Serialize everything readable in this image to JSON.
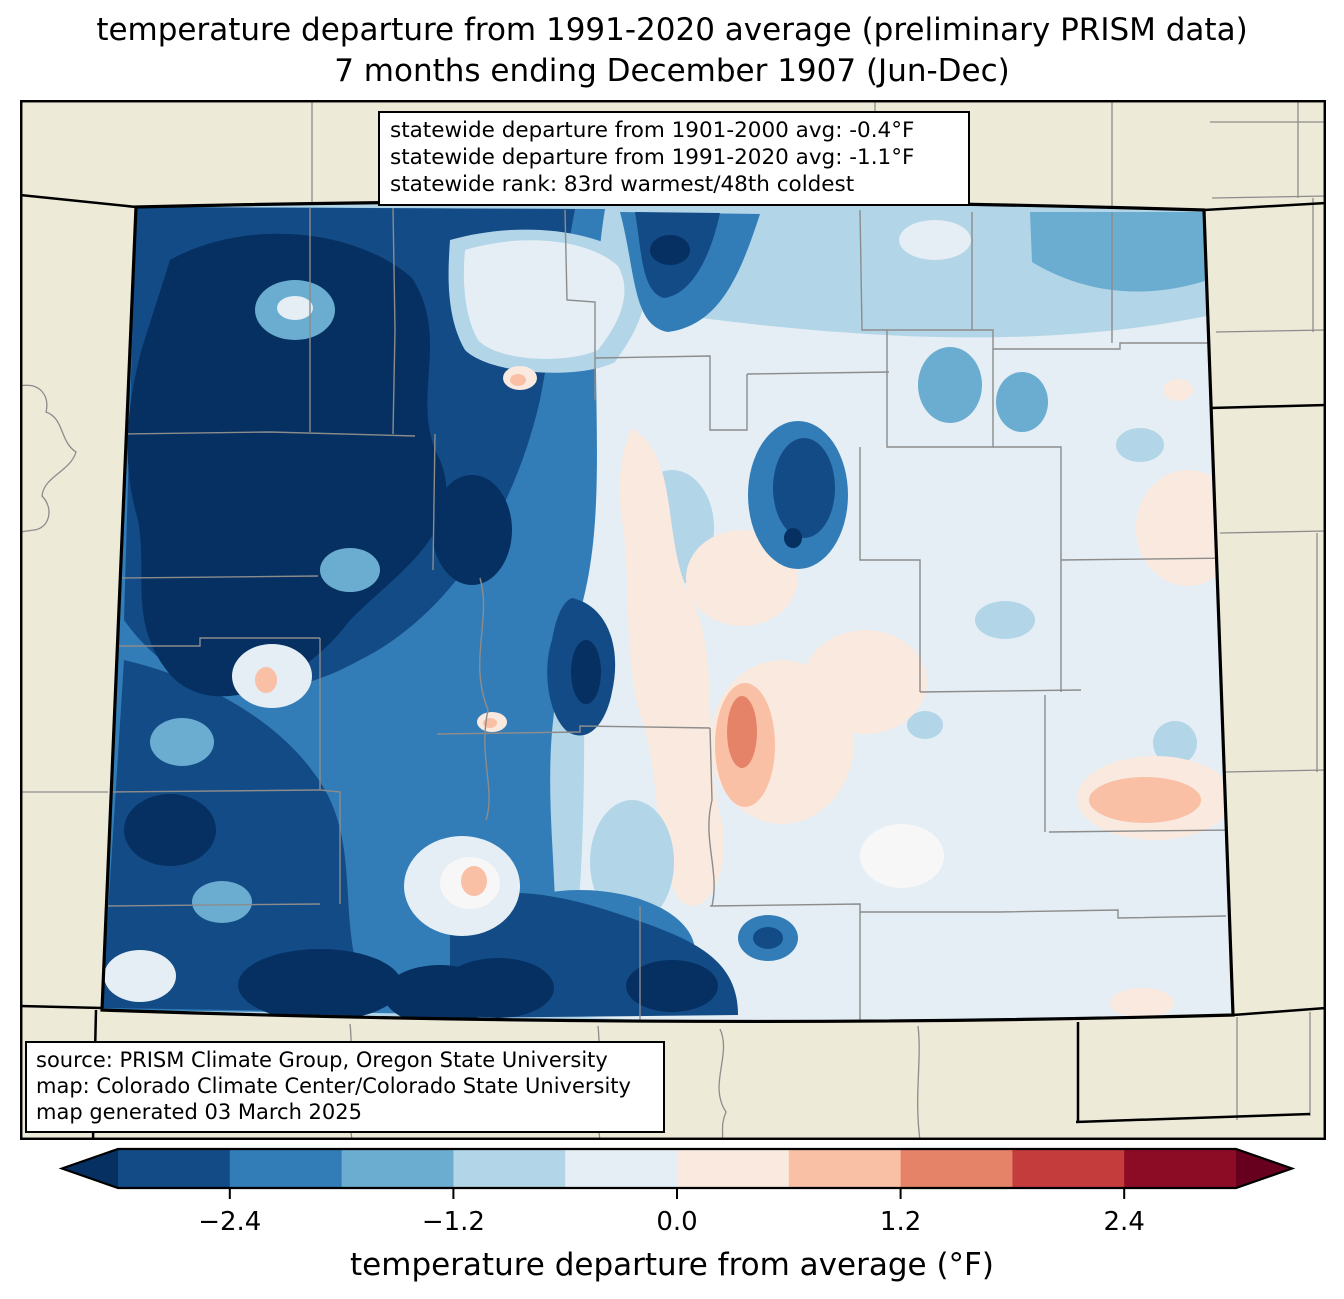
{
  "title": {
    "line1": "temperature departure from 1991-2020 average (preliminary PRISM data)",
    "line2": "7 months ending December 1907 (Jun-Dec)"
  },
  "stats_box": {
    "line1": "statewide departure from 1901-2000 avg: -0.4°F",
    "line2": "statewide departure from 1991-2020 avg: -1.1°F",
    "line3": "statewide rank: 83rd warmest/48th coldest"
  },
  "source_box": {
    "line1": "source: PRISM Climate Group, Oregon State University",
    "line2": "map: Colorado Climate Center/Colorado State University",
    "line3": "map generated 03 March 2025"
  },
  "colorbar": {
    "label": "temperature departure from average (°F)",
    "tick_labels": [
      "−2.4",
      "−1.2",
      "0.0",
      "1.2",
      "2.4"
    ],
    "tick_values": [
      -2.4,
      -1.2,
      0.0,
      1.2,
      2.4
    ],
    "range_min": -3.0,
    "range_max": 3.0,
    "segment_step": 0.6,
    "segment_colors": [
      "#134b86",
      "#327db8",
      "#6bacd1",
      "#b2d5e7",
      "#e4eef4",
      "#fae9df",
      "#f9c0a5",
      "#e58368",
      "#c43c3c",
      "#8d0c25"
    ],
    "under_arrow_color": "#053061",
    "over_arrow_color": "#67001f",
    "outline_color": "#000000"
  },
  "map": {
    "palette": {
      "beige": "#eeead8",
      "navy": "#053061",
      "blue_dark": "#134b86",
      "blue_mid": "#327db8",
      "blue_light": "#6bacd1",
      "blue_pale": "#b2d5e7",
      "near_white": "#e4eef4",
      "white_band": "#f7f7f7",
      "peach": "#fae9df",
      "salmon": "#f9c0a5",
      "orange": "#e58368"
    },
    "county_line_color": "#8c8c8c",
    "state_border_color": "#000000",
    "frame_color": "#000000"
  }
}
